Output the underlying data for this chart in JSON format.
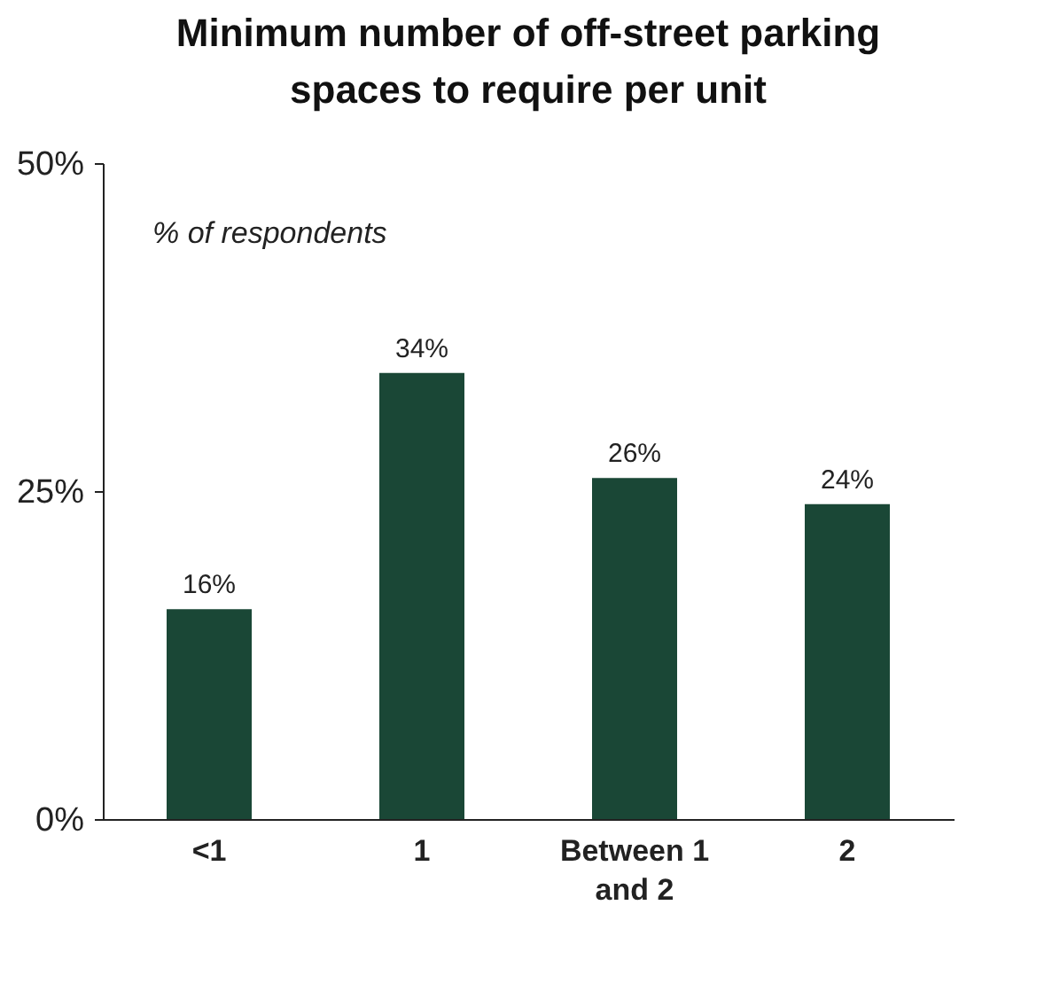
{
  "chart_data": {
    "type": "bar",
    "title": "Minimum number of off-street parking spaces to require per unit",
    "annotations": [
      "% of respondents"
    ],
    "categories": [
      "<1",
      "1",
      "Between 1 and 2",
      "2"
    ],
    "values": [
      16,
      34,
      26,
      24
    ],
    "value_labels": [
      "16%",
      "34%",
      "26%",
      "24%"
    ],
    "color": "#1a4736",
    "ylim": [
      0,
      50
    ],
    "yticks": [
      {
        "value": 0,
        "label": "0%"
      },
      {
        "value": 25,
        "label": "25%"
      },
      {
        "value": 50,
        "label": "50%"
      }
    ],
    "grid": false
  }
}
